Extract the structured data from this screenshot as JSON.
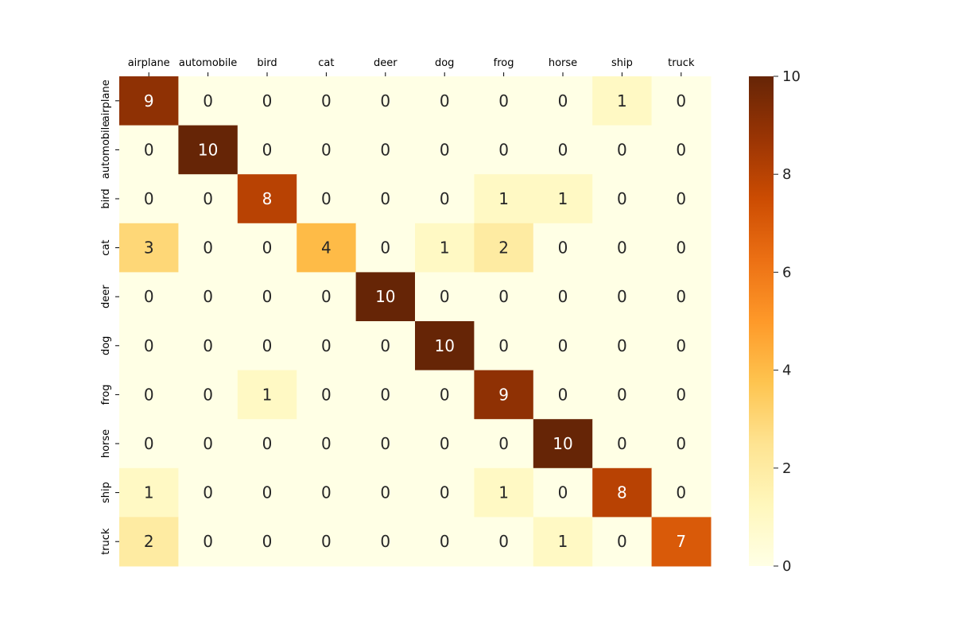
{
  "chart_data": {
    "type": "heatmap",
    "title": "",
    "xlabel": "",
    "ylabel": "",
    "x_categories": [
      "airplane",
      "automobile",
      "bird",
      "cat",
      "deer",
      "dog",
      "frog",
      "horse",
      "ship",
      "truck"
    ],
    "y_categories": [
      "airplane",
      "automobile",
      "bird",
      "cat",
      "deer",
      "dog",
      "frog",
      "horse",
      "ship",
      "truck"
    ],
    "values": [
      [
        9,
        0,
        0,
        0,
        0,
        0,
        0,
        0,
        1,
        0
      ],
      [
        0,
        10,
        0,
        0,
        0,
        0,
        0,
        0,
        0,
        0
      ],
      [
        0,
        0,
        8,
        0,
        0,
        0,
        1,
        1,
        0,
        0
      ],
      [
        3,
        0,
        0,
        4,
        0,
        1,
        2,
        0,
        0,
        0
      ],
      [
        0,
        0,
        0,
        0,
        10,
        0,
        0,
        0,
        0,
        0
      ],
      [
        0,
        0,
        0,
        0,
        0,
        10,
        0,
        0,
        0,
        0
      ],
      [
        0,
        0,
        1,
        0,
        0,
        0,
        9,
        0,
        0,
        0
      ],
      [
        0,
        0,
        0,
        0,
        0,
        0,
        0,
        10,
        0,
        0
      ],
      [
        1,
        0,
        0,
        0,
        0,
        0,
        1,
        0,
        8,
        0
      ],
      [
        2,
        0,
        0,
        0,
        0,
        0,
        0,
        1,
        0,
        7
      ]
    ],
    "colorbar": {
      "range": [
        0,
        10
      ],
      "ticks": [
        0,
        2,
        4,
        6,
        8,
        10
      ],
      "colormap": "YlOrBr",
      "colors": [
        "#ffffe5",
        "#fff7bc",
        "#fee391",
        "#fec44f",
        "#fe9929",
        "#ec7014",
        "#cc4c02",
        "#993404",
        "#662506"
      ]
    },
    "x_tick_position": "top",
    "annotated": true
  }
}
